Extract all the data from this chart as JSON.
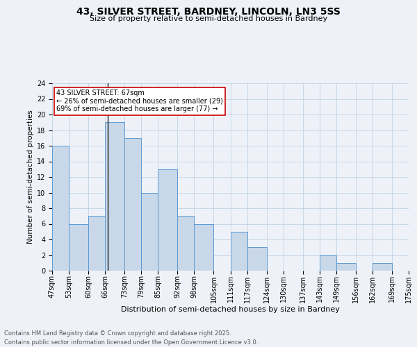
{
  "title_line1": "43, SILVER STREET, BARDNEY, LINCOLN, LN3 5SS",
  "title_line2": "Size of property relative to semi-detached houses in Bardney",
  "xlabel": "Distribution of semi-detached houses by size in Bardney",
  "ylabel": "Number of semi-detached properties",
  "footer_line1": "Contains HM Land Registry data © Crown copyright and database right 2025.",
  "footer_line2": "Contains public sector information licensed under the Open Government Licence v3.0.",
  "annotation_line1": "43 SILVER STREET: 67sqm",
  "annotation_line2": "← 26% of semi-detached houses are smaller (29)",
  "annotation_line3": "69% of semi-detached houses are larger (77) →",
  "subject_size": 67,
  "bar_edges": [
    47,
    53,
    60,
    66,
    73,
    79,
    85,
    92,
    98,
    105,
    111,
    117,
    124,
    130,
    137,
    143,
    149,
    156,
    162,
    169,
    175
  ],
  "bar_heights": [
    16,
    6,
    7,
    19,
    17,
    10,
    13,
    7,
    6,
    0,
    5,
    3,
    0,
    0,
    0,
    2,
    1,
    0,
    1,
    0
  ],
  "bar_color": "#c8d8e8",
  "bar_edge_color": "#5b9bd5",
  "subject_line_color": "#000000",
  "annotation_box_edge": "#cc0000",
  "background_color": "#eef2f8",
  "ylim": [
    0,
    24
  ],
  "yticks": [
    0,
    2,
    4,
    6,
    8,
    10,
    12,
    14,
    16,
    18,
    20,
    22,
    24
  ],
  "title_fontsize": 10,
  "subtitle_fontsize": 8,
  "ylabel_fontsize": 7.5,
  "xlabel_fontsize": 8,
  "tick_fontsize": 7,
  "footer_fontsize": 6,
  "annotation_fontsize": 7
}
